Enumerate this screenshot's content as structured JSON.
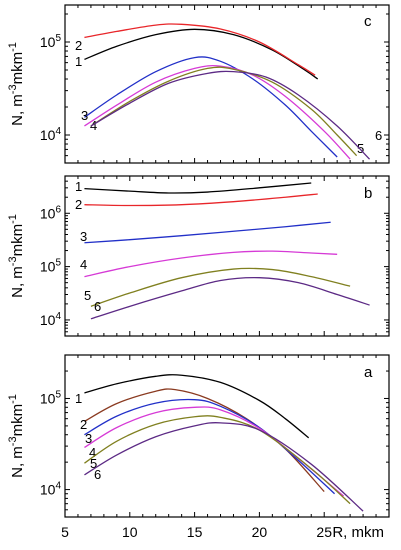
{
  "chart_data": [
    {
      "panel": "c",
      "type": "line",
      "ylabel_base": "N, m",
      "ylabel_exp1": "-3",
      "ylabel_mid": "mkm",
      "ylabel_exp2": "-1",
      "yscale": "log",
      "xlim": [
        5,
        30
      ],
      "ylim": [
        5000,
        250000
      ],
      "yticks": [
        {
          "value": 10000,
          "base": "10",
          "exp": "4"
        },
        {
          "value": 100000,
          "base": "10",
          "exp": "5"
        }
      ],
      "series": [
        {
          "label": "1",
          "color": "#000000",
          "points": [
            [
              6.5,
              65000
            ],
            [
              9,
              90000
            ],
            [
              12,
              120000
            ],
            [
              15,
              137000
            ],
            [
              18,
              120000
            ],
            [
              21,
              82000
            ],
            [
              23.5,
              50000
            ],
            [
              24.5,
              40000
            ]
          ]
        },
        {
          "label": "2",
          "color": "#e8262a",
          "points": [
            [
              6.5,
              112000
            ],
            [
              9,
              130000
            ],
            [
              12,
              152000
            ],
            [
              14,
              155000
            ],
            [
              17,
              138000
            ],
            [
              20,
              100000
            ],
            [
              23,
              57000
            ],
            [
              24.3,
              44000
            ]
          ]
        },
        {
          "label": "3",
          "color": "#2230c8",
          "points": [
            [
              6.5,
              15500
            ],
            [
              9,
              27000
            ],
            [
              12,
              48000
            ],
            [
              15,
              68000
            ],
            [
              17,
              62000
            ],
            [
              19.5,
              40000
            ],
            [
              22,
              21000
            ],
            [
              24,
              11000
            ],
            [
              26,
              5800
            ]
          ]
        },
        {
          "label": "4",
          "color": "#d63ad6",
          "points": [
            [
              6.5,
              12500
            ],
            [
              9,
              21000
            ],
            [
              12,
              37000
            ],
            [
              15,
              52000
            ],
            [
              17,
              55000
            ],
            [
              19.5,
              44000
            ],
            [
              22,
              26000
            ],
            [
              25,
              11000
            ],
            [
              27,
              5500
            ]
          ]
        },
        {
          "label": "5",
          "color": "#808020",
          "points": [
            [
              7,
              12500
            ],
            [
              10,
              23000
            ],
            [
              13,
              38000
            ],
            [
              16,
              52000
            ],
            [
              18,
              51000
            ],
            [
              21,
              37000
            ],
            [
              24,
              19000
            ],
            [
              26,
              10000
            ],
            [
              27.5,
              6000
            ]
          ]
        },
        {
          "label": "6",
          "color": "#5c2a85",
          "points": [
            [
              7,
              12500
            ],
            [
              10,
              22000
            ],
            [
              13,
              36000
            ],
            [
              16,
              46000
            ],
            [
              18,
              48000
            ],
            [
              20.5,
              42000
            ],
            [
              23,
              27000
            ],
            [
              26,
              12500
            ],
            [
              28.5,
              5500
            ]
          ]
        }
      ]
    },
    {
      "panel": "b",
      "type": "line",
      "ylabel_base": "N, m",
      "ylabel_exp1": "-3",
      "ylabel_mid": "mkm",
      "ylabel_exp2": "-1",
      "yscale": "log",
      "xlim": [
        5,
        30
      ],
      "ylim": [
        5000,
        5000000
      ],
      "yticks": [
        {
          "value": 10000,
          "base": "10",
          "exp": "4"
        },
        {
          "value": 100000,
          "base": "10",
          "exp": "5"
        },
        {
          "value": 1000000,
          "base": "10",
          "exp": "6"
        }
      ],
      "series": [
        {
          "label": "1",
          "color": "#000000",
          "points": [
            [
              6.5,
              2900000
            ],
            [
              10,
              2600000
            ],
            [
              13,
              2400000
            ],
            [
              16,
              2500000
            ],
            [
              20,
              3000000
            ],
            [
              24,
              3700000
            ]
          ]
        },
        {
          "label": "2",
          "color": "#e8262a",
          "points": [
            [
              6.5,
              1450000
            ],
            [
              10,
              1400000
            ],
            [
              14,
              1450000
            ],
            [
              18,
              1650000
            ],
            [
              22,
              2000000
            ],
            [
              24.5,
              2300000
            ]
          ]
        },
        {
          "label": "3",
          "color": "#2230c8",
          "points": [
            [
              6.5,
              280000
            ],
            [
              10,
              320000
            ],
            [
              14,
              380000
            ],
            [
              18,
              460000
            ],
            [
              22,
              560000
            ],
            [
              25.5,
              680000
            ]
          ]
        },
        {
          "label": "4",
          "color": "#d63ad6",
          "points": [
            [
              6.5,
              65000
            ],
            [
              10,
              100000
            ],
            [
              14,
              145000
            ],
            [
              18,
              185000
            ],
            [
              21,
              195000
            ],
            [
              24,
              180000
            ],
            [
              26,
              170000
            ]
          ]
        },
        {
          "label": "5",
          "color": "#808020",
          "points": [
            [
              7,
              18000
            ],
            [
              10,
              32000
            ],
            [
              14,
              62000
            ],
            [
              18,
              90000
            ],
            [
              21,
              88000
            ],
            [
              24,
              65000
            ],
            [
              27,
              43000
            ]
          ]
        },
        {
          "label": "6",
          "color": "#5c2a85",
          "points": [
            [
              7,
              10500
            ],
            [
              10,
              18000
            ],
            [
              14,
              35000
            ],
            [
              17,
              55000
            ],
            [
              20,
              62000
            ],
            [
              23,
              50000
            ],
            [
              26,
              30000
            ],
            [
              28.5,
              19000
            ]
          ]
        }
      ]
    },
    {
      "panel": "a",
      "type": "line",
      "ylabel_base": "N, m",
      "ylabel_exp1": "-3",
      "ylabel_mid": "mkm",
      "ylabel_exp2": "-1",
      "yscale": "log",
      "xlim": [
        5,
        30
      ],
      "ylim": [
        5000,
        300000
      ],
      "yticks": [
        {
          "value": 10000,
          "base": "10",
          "exp": "4"
        },
        {
          "value": 100000,
          "base": "10",
          "exp": "5"
        }
      ],
      "xticks": [
        5,
        10,
        15,
        20,
        25
      ],
      "xlabel": "R, mkm",
      "series": [
        {
          "label": "1",
          "color": "#000000",
          "points": [
            [
              6.5,
              115000
            ],
            [
              9,
              145000
            ],
            [
              12,
              175000
            ],
            [
              14,
              180000
            ],
            [
              17,
              150000
            ],
            [
              20,
              95000
            ],
            [
              22,
              60000
            ],
            [
              23.8,
              37000
            ]
          ]
        },
        {
          "label": "2",
          "color": "#8a3a20",
          "points": [
            [
              6.5,
              56000
            ],
            [
              9,
              88000
            ],
            [
              12,
              120000
            ],
            [
              13.5,
              125000
            ],
            [
              16,
              100000
            ],
            [
              19,
              60000
            ],
            [
              22,
              28000
            ],
            [
              25,
              9500
            ]
          ]
        },
        {
          "label": "3",
          "color": "#2230c8",
          "points": [
            [
              6.5,
              40000
            ],
            [
              9,
              64000
            ],
            [
              12,
              89000
            ],
            [
              15,
              97000
            ],
            [
              17,
              82000
            ],
            [
              20,
              48000
            ],
            [
              23,
              21000
            ],
            [
              25.8,
              9000
            ]
          ]
        },
        {
          "label": "4",
          "color": "#d63ad6",
          "points": [
            [
              6.5,
              29000
            ],
            [
              9,
              48000
            ],
            [
              12,
              70000
            ],
            [
              15,
              80000
            ],
            [
              17,
              75000
            ],
            [
              20,
              47000
            ],
            [
              23,
              22000
            ],
            [
              26.5,
              8500
            ]
          ]
        },
        {
          "label": "5",
          "color": "#808020",
          "points": [
            [
              6.5,
              19500
            ],
            [
              9,
              34000
            ],
            [
              12,
              52000
            ],
            [
              15,
              63000
            ],
            [
              17,
              62000
            ],
            [
              20,
              45000
            ],
            [
              24,
              17000
            ],
            [
              27,
              7000
            ]
          ]
        },
        {
          "label": "6",
          "color": "#5c2a85",
          "points": [
            [
              6.5,
              14500
            ],
            [
              9,
              24000
            ],
            [
              12,
              38000
            ],
            [
              15,
              50000
            ],
            [
              17,
              54000
            ],
            [
              20,
              45000
            ],
            [
              24,
              19000
            ],
            [
              28,
              5800
            ]
          ]
        }
      ]
    }
  ]
}
